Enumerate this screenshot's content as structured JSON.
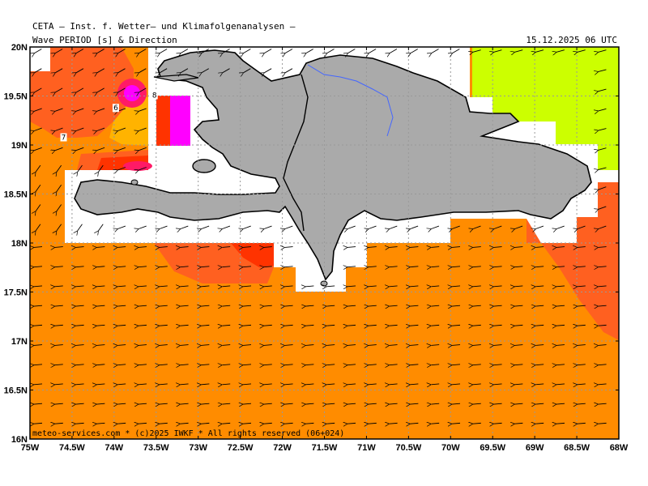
{
  "header": {
    "org_title": "CETA — Inst. f. Wetter— und Klimafolgenanalysen —",
    "subtitle": "Wave PERIOD [s] & Direction",
    "valid_time": "15.12.2025 06 UTC"
  },
  "footer": {
    "credit": "meteo-services.com * (c)2025 IWKF * All rights reserved (06+024)"
  },
  "axes": {
    "lon_labels": [
      "75W",
      "74.5W",
      "74W",
      "73.5W",
      "73W",
      "72.5W",
      "72W",
      "71.5W",
      "71W",
      "70.5W",
      "70W",
      "69.5W",
      "69W",
      "68.5W",
      "68W"
    ],
    "lat_labels": [
      "20N",
      "19.5N",
      "19N",
      "18.5N",
      "18N",
      "17.5N",
      "17N",
      "16.5N",
      "16N"
    ],
    "lon_range": [
      -75,
      -68
    ],
    "lat_range": [
      16,
      20
    ]
  },
  "contour_labels": [
    {
      "text": "6",
      "lon": -73.98,
      "lat": 19.37
    },
    {
      "text": "7",
      "lon": -74.6,
      "lat": 19.07
    },
    {
      "text": "8",
      "lon": -73.52,
      "lat": 19.5
    }
  ],
  "legend_colors": {
    "period_6_7": "#ff8c00",
    "period_7_8": "#ff6020",
    "period_8_9": "#ff3300",
    "period_9_10": "#ff1a66",
    "period_10_plus": "#ff00ff",
    "period_low": "#ccff00",
    "period_mid_low": "#ffb300",
    "land": "#aaaaaa",
    "rivers": "#4466ff"
  }
}
